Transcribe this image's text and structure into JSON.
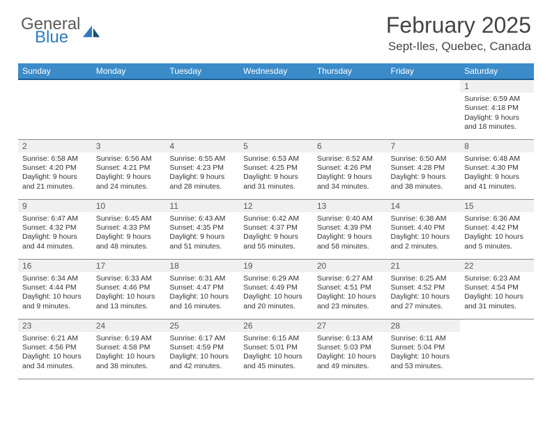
{
  "brand": {
    "line1": "General",
    "line2": "Blue"
  },
  "title": "February 2025",
  "location": "Sept-Iles, Quebec, Canada",
  "header_bg": "#3b8bc9",
  "header_border": "#1e5c91",
  "daynum_bg": "#f0f0f0",
  "row_border": "#888888",
  "weekdays": [
    "Sunday",
    "Monday",
    "Tuesday",
    "Wednesday",
    "Thursday",
    "Friday",
    "Saturday"
  ],
  "weeks": [
    [
      null,
      null,
      null,
      null,
      null,
      null,
      {
        "n": "1",
        "sr": "Sunrise: 6:59 AM",
        "ss": "Sunset: 4:18 PM",
        "dl": "Daylight: 9 hours and 18 minutes."
      }
    ],
    [
      {
        "n": "2",
        "sr": "Sunrise: 6:58 AM",
        "ss": "Sunset: 4:20 PM",
        "dl": "Daylight: 9 hours and 21 minutes."
      },
      {
        "n": "3",
        "sr": "Sunrise: 6:56 AM",
        "ss": "Sunset: 4:21 PM",
        "dl": "Daylight: 9 hours and 24 minutes."
      },
      {
        "n": "4",
        "sr": "Sunrise: 6:55 AM",
        "ss": "Sunset: 4:23 PM",
        "dl": "Daylight: 9 hours and 28 minutes."
      },
      {
        "n": "5",
        "sr": "Sunrise: 6:53 AM",
        "ss": "Sunset: 4:25 PM",
        "dl": "Daylight: 9 hours and 31 minutes."
      },
      {
        "n": "6",
        "sr": "Sunrise: 6:52 AM",
        "ss": "Sunset: 4:26 PM",
        "dl": "Daylight: 9 hours and 34 minutes."
      },
      {
        "n": "7",
        "sr": "Sunrise: 6:50 AM",
        "ss": "Sunset: 4:28 PM",
        "dl": "Daylight: 9 hours and 38 minutes."
      },
      {
        "n": "8",
        "sr": "Sunrise: 6:48 AM",
        "ss": "Sunset: 4:30 PM",
        "dl": "Daylight: 9 hours and 41 minutes."
      }
    ],
    [
      {
        "n": "9",
        "sr": "Sunrise: 6:47 AM",
        "ss": "Sunset: 4:32 PM",
        "dl": "Daylight: 9 hours and 44 minutes."
      },
      {
        "n": "10",
        "sr": "Sunrise: 6:45 AM",
        "ss": "Sunset: 4:33 PM",
        "dl": "Daylight: 9 hours and 48 minutes."
      },
      {
        "n": "11",
        "sr": "Sunrise: 6:43 AM",
        "ss": "Sunset: 4:35 PM",
        "dl": "Daylight: 9 hours and 51 minutes."
      },
      {
        "n": "12",
        "sr": "Sunrise: 6:42 AM",
        "ss": "Sunset: 4:37 PM",
        "dl": "Daylight: 9 hours and 55 minutes."
      },
      {
        "n": "13",
        "sr": "Sunrise: 6:40 AM",
        "ss": "Sunset: 4:39 PM",
        "dl": "Daylight: 9 hours and 58 minutes."
      },
      {
        "n": "14",
        "sr": "Sunrise: 6:38 AM",
        "ss": "Sunset: 4:40 PM",
        "dl": "Daylight: 10 hours and 2 minutes."
      },
      {
        "n": "15",
        "sr": "Sunrise: 6:36 AM",
        "ss": "Sunset: 4:42 PM",
        "dl": "Daylight: 10 hours and 5 minutes."
      }
    ],
    [
      {
        "n": "16",
        "sr": "Sunrise: 6:34 AM",
        "ss": "Sunset: 4:44 PM",
        "dl": "Daylight: 10 hours and 9 minutes."
      },
      {
        "n": "17",
        "sr": "Sunrise: 6:33 AM",
        "ss": "Sunset: 4:46 PM",
        "dl": "Daylight: 10 hours and 13 minutes."
      },
      {
        "n": "18",
        "sr": "Sunrise: 6:31 AM",
        "ss": "Sunset: 4:47 PM",
        "dl": "Daylight: 10 hours and 16 minutes."
      },
      {
        "n": "19",
        "sr": "Sunrise: 6:29 AM",
        "ss": "Sunset: 4:49 PM",
        "dl": "Daylight: 10 hours and 20 minutes."
      },
      {
        "n": "20",
        "sr": "Sunrise: 6:27 AM",
        "ss": "Sunset: 4:51 PM",
        "dl": "Daylight: 10 hours and 23 minutes."
      },
      {
        "n": "21",
        "sr": "Sunrise: 6:25 AM",
        "ss": "Sunset: 4:52 PM",
        "dl": "Daylight: 10 hours and 27 minutes."
      },
      {
        "n": "22",
        "sr": "Sunrise: 6:23 AM",
        "ss": "Sunset: 4:54 PM",
        "dl": "Daylight: 10 hours and 31 minutes."
      }
    ],
    [
      {
        "n": "23",
        "sr": "Sunrise: 6:21 AM",
        "ss": "Sunset: 4:56 PM",
        "dl": "Daylight: 10 hours and 34 minutes."
      },
      {
        "n": "24",
        "sr": "Sunrise: 6:19 AM",
        "ss": "Sunset: 4:58 PM",
        "dl": "Daylight: 10 hours and 38 minutes."
      },
      {
        "n": "25",
        "sr": "Sunrise: 6:17 AM",
        "ss": "Sunset: 4:59 PM",
        "dl": "Daylight: 10 hours and 42 minutes."
      },
      {
        "n": "26",
        "sr": "Sunrise: 6:15 AM",
        "ss": "Sunset: 5:01 PM",
        "dl": "Daylight: 10 hours and 45 minutes."
      },
      {
        "n": "27",
        "sr": "Sunrise: 6:13 AM",
        "ss": "Sunset: 5:03 PM",
        "dl": "Daylight: 10 hours and 49 minutes."
      },
      {
        "n": "28",
        "sr": "Sunrise: 6:11 AM",
        "ss": "Sunset: 5:04 PM",
        "dl": "Daylight: 10 hours and 53 minutes."
      },
      null
    ]
  ]
}
